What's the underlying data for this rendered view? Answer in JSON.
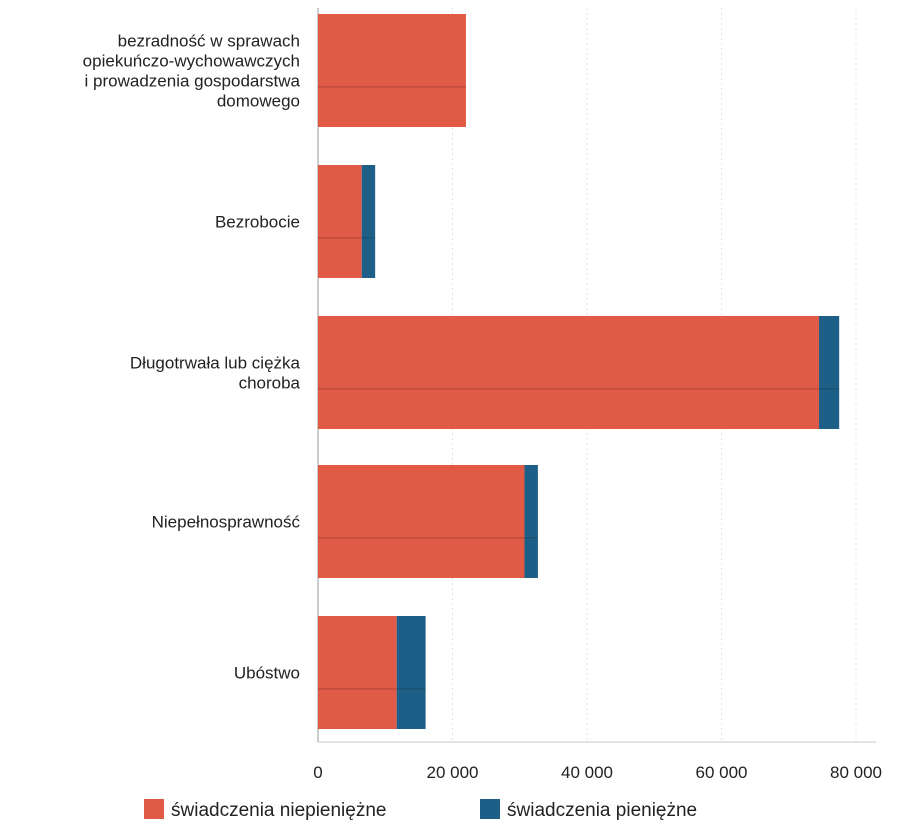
{
  "chart_data": {
    "type": "bar",
    "orientation": "horizontal",
    "stacked": true,
    "categories": [
      "bezradność w sprawach opiekuńczo-wychowawczych i prowadzenia gospodarstwa domowego",
      "Bezrobocie",
      "Długotrwała lub ciężka choroba",
      "Niepełnosprawność",
      "Ubóstwo"
    ],
    "category_lines": [
      [
        "bezradność w sprawach",
        "opiekuńczo-wychowawczych",
        "i prowadzenia gospodarstwa",
        "domowego"
      ],
      [
        "Bezrobocie"
      ],
      [
        "Długotrwała lub ciężka",
        "choroba"
      ],
      [
        "Niepełnosprawność"
      ],
      [
        "Ubóstwo"
      ]
    ],
    "series": [
      {
        "name": "świadczenia niepieniężne",
        "color": "#e05a45",
        "values": [
          22000,
          6500,
          74500,
          30700,
          11700
        ]
      },
      {
        "name": "świadczenia pieniężne",
        "color": "#1e5f87",
        "values": [
          0,
          2000,
          3000,
          2000,
          4300
        ]
      }
    ],
    "xlim": [
      0,
      80000
    ],
    "xticks": [
      0,
      20000,
      40000,
      60000,
      80000
    ],
    "xtick_labels": [
      "0",
      "20 000",
      "40 000",
      "60 000",
      "80 000"
    ],
    "xlabel": "",
    "ylabel": "",
    "grid": true,
    "legend_position": "bottom"
  }
}
